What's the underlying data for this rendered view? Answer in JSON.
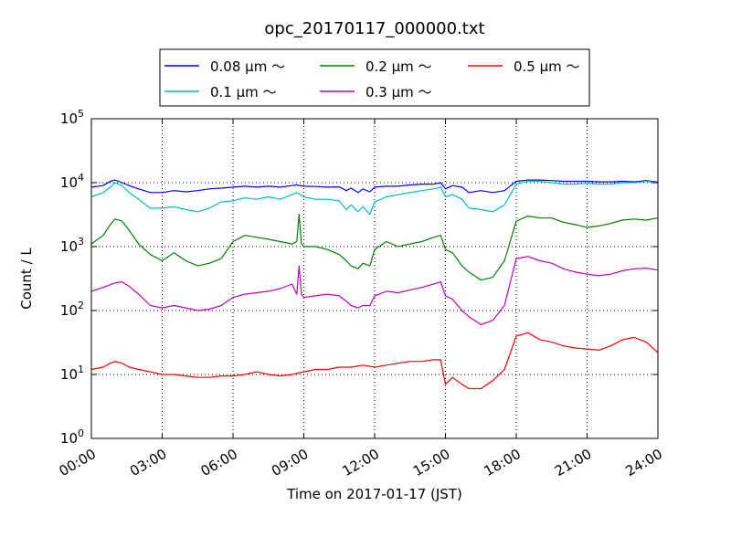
{
  "chart_data": {
    "type": "line",
    "title": "opc_20170117_000000.txt",
    "xlabel": "Time on 2017-01-17 (JST)",
    "ylabel": "Count / L",
    "yscale": "log",
    "ylim": [
      1,
      100000
    ],
    "xlim": [
      0,
      24
    ],
    "grid": true,
    "legend_position": "top-center",
    "x_ticks": [
      {
        "value": 0,
        "label": "00:00"
      },
      {
        "value": 3,
        "label": "03:00"
      },
      {
        "value": 6,
        "label": "06:00"
      },
      {
        "value": 9,
        "label": "09:00"
      },
      {
        "value": 12,
        "label": "12:00"
      },
      {
        "value": 15,
        "label": "15:00"
      },
      {
        "value": 18,
        "label": "18:00"
      },
      {
        "value": 21,
        "label": "21:00"
      },
      {
        "value": 24,
        "label": "24:00"
      }
    ],
    "y_ticks": [
      {
        "value": 1,
        "base": "10",
        "exp": "0"
      },
      {
        "value": 10,
        "base": "10",
        "exp": "1"
      },
      {
        "value": 100,
        "base": "10",
        "exp": "2"
      },
      {
        "value": 1000,
        "base": "10",
        "exp": "3"
      },
      {
        "value": 10000,
        "base": "10",
        "exp": "4"
      },
      {
        "value": 100000,
        "base": "10",
        "exp": "5"
      }
    ],
    "series": [
      {
        "name": "0.08 μm ～",
        "color": "#0000ff",
        "points": [
          [
            0,
            8500
          ],
          [
            0.5,
            9000
          ],
          [
            0.8,
            10500
          ],
          [
            1,
            11000
          ],
          [
            1.3,
            10000
          ],
          [
            1.6,
            9000
          ],
          [
            2,
            8000
          ],
          [
            2.5,
            7000
          ],
          [
            3,
            7000
          ],
          [
            3.5,
            7500
          ],
          [
            4,
            7200
          ],
          [
            4.5,
            7500
          ],
          [
            5,
            8000
          ],
          [
            5.5,
            8200
          ],
          [
            6,
            8500
          ],
          [
            6.5,
            8800
          ],
          [
            7,
            8500
          ],
          [
            7.5,
            8800
          ],
          [
            8,
            8500
          ],
          [
            8.5,
            9000
          ],
          [
            8.7,
            9200
          ],
          [
            9,
            8800
          ],
          [
            9.5,
            8700
          ],
          [
            10,
            8500
          ],
          [
            10.5,
            8600
          ],
          [
            10.8,
            7500
          ],
          [
            11,
            8200
          ],
          [
            11.3,
            7000
          ],
          [
            11.5,
            8000
          ],
          [
            11.8,
            7200
          ],
          [
            12,
            8500
          ],
          [
            12.5,
            8800
          ],
          [
            13,
            8800
          ],
          [
            13.5,
            9200
          ],
          [
            14,
            9500
          ],
          [
            14.5,
            9500
          ],
          [
            14.8,
            10000
          ],
          [
            15,
            8000
          ],
          [
            15.3,
            9000
          ],
          [
            15.7,
            8500
          ],
          [
            16,
            7000
          ],
          [
            16.5,
            7500
          ],
          [
            17,
            7000
          ],
          [
            17.5,
            7500
          ],
          [
            18,
            10500
          ],
          [
            18.5,
            11000
          ],
          [
            19,
            11000
          ],
          [
            19.5,
            10800
          ],
          [
            20,
            10500
          ],
          [
            20.5,
            10500
          ],
          [
            21,
            10500
          ],
          [
            21.5,
            10300
          ],
          [
            22,
            10300
          ],
          [
            22.5,
            10500
          ],
          [
            23,
            10300
          ],
          [
            23.5,
            10800
          ],
          [
            24,
            10200
          ]
        ]
      },
      {
        "name": "0.1 μm ～",
        "color": "#00bfbf",
        "points": [
          [
            0,
            6000
          ],
          [
            0.5,
            7000
          ],
          [
            0.8,
            8500
          ],
          [
            1,
            10000
          ],
          [
            1.3,
            9000
          ],
          [
            1.6,
            7000
          ],
          [
            2,
            5500
          ],
          [
            2.5,
            4000
          ],
          [
            3,
            4000
          ],
          [
            3.5,
            4200
          ],
          [
            4,
            3800
          ],
          [
            4.5,
            3500
          ],
          [
            5,
            4000
          ],
          [
            5.5,
            5000
          ],
          [
            6,
            5200
          ],
          [
            6.5,
            5800
          ],
          [
            7,
            5500
          ],
          [
            7.5,
            6000
          ],
          [
            8,
            5500
          ],
          [
            8.5,
            6500
          ],
          [
            8.7,
            7000
          ],
          [
            9,
            6000
          ],
          [
            9.5,
            5500
          ],
          [
            10,
            5500
          ],
          [
            10.5,
            5200
          ],
          [
            10.8,
            3800
          ],
          [
            11,
            4500
          ],
          [
            11.3,
            3500
          ],
          [
            11.5,
            4200
          ],
          [
            11.8,
            3200
          ],
          [
            12,
            5000
          ],
          [
            12.5,
            6000
          ],
          [
            13,
            6500
          ],
          [
            13.5,
            7000
          ],
          [
            14,
            7500
          ],
          [
            14.5,
            8000
          ],
          [
            14.8,
            8500
          ],
          [
            15,
            6000
          ],
          [
            15.3,
            6500
          ],
          [
            15.7,
            5500
          ],
          [
            16,
            4000
          ],
          [
            16.5,
            3800
          ],
          [
            17,
            3500
          ],
          [
            17.5,
            4500
          ],
          [
            18,
            9500
          ],
          [
            18.5,
            10500
          ],
          [
            19,
            10500
          ],
          [
            19.5,
            10000
          ],
          [
            20,
            9500
          ],
          [
            20.5,
            9500
          ],
          [
            21,
            9800
          ],
          [
            21.5,
            9500
          ],
          [
            22,
            9500
          ],
          [
            22.5,
            10000
          ],
          [
            23,
            10000
          ],
          [
            23.5,
            10500
          ],
          [
            24,
            10000
          ]
        ]
      },
      {
        "name": "0.2 μm ～",
        "color": "#008000",
        "points": [
          [
            0,
            1100
          ],
          [
            0.5,
            1500
          ],
          [
            0.8,
            2200
          ],
          [
            1,
            2700
          ],
          [
            1.3,
            2500
          ],
          [
            1.6,
            1800
          ],
          [
            2,
            1100
          ],
          [
            2.5,
            750
          ],
          [
            3,
            600
          ],
          [
            3.5,
            800
          ],
          [
            4,
            600
          ],
          [
            4.5,
            500
          ],
          [
            5,
            550
          ],
          [
            5.5,
            650
          ],
          [
            6,
            1200
          ],
          [
            6.5,
            1500
          ],
          [
            7,
            1400
          ],
          [
            7.5,
            1300
          ],
          [
            8,
            1200
          ],
          [
            8.5,
            1100
          ],
          [
            8.7,
            1200
          ],
          [
            8.8,
            3200
          ],
          [
            8.9,
            1100
          ],
          [
            9,
            1000
          ],
          [
            9.5,
            1000
          ],
          [
            10,
            900
          ],
          [
            10.5,
            750
          ],
          [
            10.8,
            600
          ],
          [
            11,
            500
          ],
          [
            11.3,
            450
          ],
          [
            11.5,
            550
          ],
          [
            11.8,
            500
          ],
          [
            12,
            900
          ],
          [
            12.5,
            1200
          ],
          [
            13,
            1000
          ],
          [
            13.5,
            1100
          ],
          [
            14,
            1200
          ],
          [
            14.5,
            1400
          ],
          [
            14.8,
            1500
          ],
          [
            15,
            900
          ],
          [
            15.3,
            800
          ],
          [
            15.7,
            500
          ],
          [
            16,
            400
          ],
          [
            16.5,
            300
          ],
          [
            17,
            330
          ],
          [
            17.5,
            600
          ],
          [
            18,
            2500
          ],
          [
            18.5,
            3000
          ],
          [
            19,
            2800
          ],
          [
            19.5,
            2800
          ],
          [
            20,
            2400
          ],
          [
            20.5,
            2200
          ],
          [
            21,
            2000
          ],
          [
            21.5,
            2100
          ],
          [
            22,
            2300
          ],
          [
            22.5,
            2600
          ],
          [
            23,
            2700
          ],
          [
            23.5,
            2600
          ],
          [
            24,
            2800
          ]
        ]
      },
      {
        "name": "0.3 μm ～",
        "color": "#bf00bf",
        "points": [
          [
            0,
            200
          ],
          [
            0.5,
            230
          ],
          [
            1,
            270
          ],
          [
            1.3,
            280
          ],
          [
            1.6,
            240
          ],
          [
            2,
            180
          ],
          [
            2.5,
            120
          ],
          [
            3,
            110
          ],
          [
            3.5,
            120
          ],
          [
            4,
            110
          ],
          [
            4.5,
            100
          ],
          [
            5,
            105
          ],
          [
            5.5,
            120
          ],
          [
            6,
            160
          ],
          [
            6.5,
            180
          ],
          [
            7,
            190
          ],
          [
            7.5,
            200
          ],
          [
            8,
            220
          ],
          [
            8.5,
            260
          ],
          [
            8.7,
            180
          ],
          [
            8.8,
            500
          ],
          [
            8.9,
            180
          ],
          [
            9,
            160
          ],
          [
            9.5,
            170
          ],
          [
            10,
            180
          ],
          [
            10.5,
            170
          ],
          [
            10.8,
            140
          ],
          [
            11,
            120
          ],
          [
            11.3,
            110
          ],
          [
            11.5,
            120
          ],
          [
            11.8,
            120
          ],
          [
            12,
            170
          ],
          [
            12.5,
            200
          ],
          [
            13,
            190
          ],
          [
            13.5,
            210
          ],
          [
            14,
            230
          ],
          [
            14.5,
            260
          ],
          [
            14.8,
            280
          ],
          [
            15,
            170
          ],
          [
            15.3,
            150
          ],
          [
            15.7,
            100
          ],
          [
            16,
            80
          ],
          [
            16.5,
            60
          ],
          [
            17,
            70
          ],
          [
            17.5,
            120
          ],
          [
            18,
            650
          ],
          [
            18.5,
            700
          ],
          [
            19,
            600
          ],
          [
            19.5,
            550
          ],
          [
            20,
            450
          ],
          [
            20.5,
            400
          ],
          [
            21,
            370
          ],
          [
            21.5,
            350
          ],
          [
            22,
            370
          ],
          [
            22.5,
            420
          ],
          [
            23,
            450
          ],
          [
            23.5,
            460
          ],
          [
            24,
            430
          ]
        ]
      },
      {
        "name": "0.5 μm ～",
        "color": "#ff0000",
        "points": [
          [
            0,
            12
          ],
          [
            0.5,
            13
          ],
          [
            0.8,
            15
          ],
          [
            1,
            16
          ],
          [
            1.3,
            15
          ],
          [
            1.6,
            13
          ],
          [
            2,
            12
          ],
          [
            2.5,
            11
          ],
          [
            3,
            10
          ],
          [
            3.5,
            10
          ],
          [
            4,
            9.5
          ],
          [
            4.5,
            9
          ],
          [
            5,
            9
          ],
          [
            5.5,
            9.5
          ],
          [
            6,
            9.5
          ],
          [
            6.5,
            10
          ],
          [
            7,
            11
          ],
          [
            7.5,
            10
          ],
          [
            8,
            9.5
          ],
          [
            8.5,
            10
          ],
          [
            9,
            11
          ],
          [
            9.5,
            12
          ],
          [
            10,
            12
          ],
          [
            10.5,
            13
          ],
          [
            11,
            13
          ],
          [
            11.5,
            14
          ],
          [
            12,
            13
          ],
          [
            12.5,
            14
          ],
          [
            13,
            15
          ],
          [
            13.5,
            16
          ],
          [
            14,
            16
          ],
          [
            14.5,
            17
          ],
          [
            14.8,
            17
          ],
          [
            15,
            7
          ],
          [
            15.3,
            9
          ],
          [
            15.7,
            7
          ],
          [
            16,
            6
          ],
          [
            16.5,
            6
          ],
          [
            17,
            8
          ],
          [
            17.5,
            12
          ],
          [
            18,
            40
          ],
          [
            18.5,
            45
          ],
          [
            19,
            35
          ],
          [
            19.5,
            32
          ],
          [
            20,
            28
          ],
          [
            20.5,
            26
          ],
          [
            21,
            25
          ],
          [
            21.5,
            24
          ],
          [
            22,
            28
          ],
          [
            22.5,
            35
          ],
          [
            23,
            38
          ],
          [
            23.5,
            32
          ],
          [
            24,
            22
          ]
        ]
      }
    ]
  }
}
